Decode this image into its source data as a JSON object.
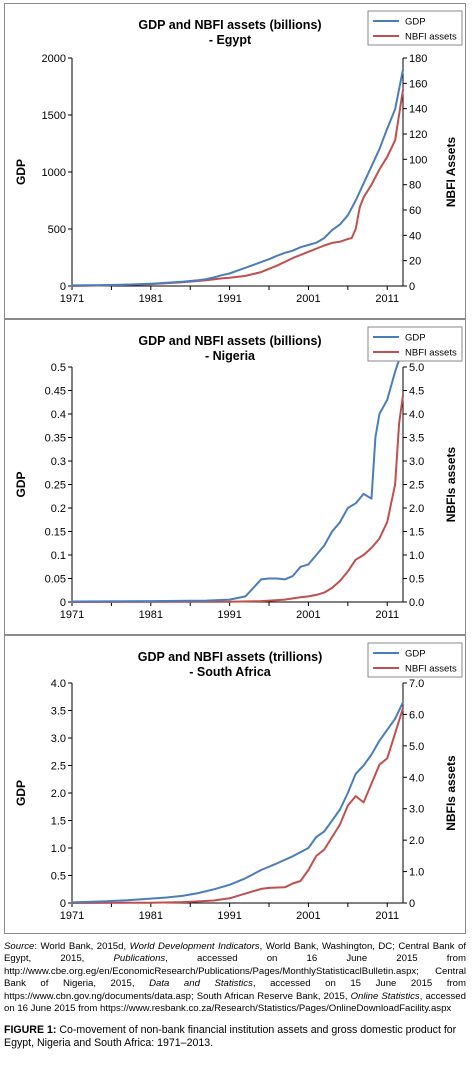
{
  "chart_data": [
    {
      "type": "line",
      "title": "GDP and NBFI assets (billions)",
      "subtitle": "- Egypt",
      "ylabel": "GDP",
      "y2label": "NBFI Assets",
      "xlim": [
        1971,
        2013
      ],
      "ylim": [
        0,
        2000
      ],
      "y2lim": [
        0,
        180
      ],
      "x_ticks": [
        1971,
        1981,
        1991,
        2001,
        2011
      ],
      "y_ticks": [
        "0",
        "500",
        "1000",
        "1500",
        "2000"
      ],
      "y2_ticks": [
        "0",
        "20",
        "40",
        "60",
        "80",
        "100",
        "120",
        "140",
        "160",
        "180"
      ],
      "legend": "top-right",
      "series": [
        {
          "name": "GDP",
          "axis": "left",
          "color": "#4a7eba",
          "x": [
            1971,
            1975,
            1978,
            1981,
            1983,
            1985,
            1987,
            1988,
            1989,
            1990,
            1991,
            1992,
            1993,
            1994,
            1995,
            1996,
            1997,
            1998,
            1999,
            2000,
            2001,
            2002,
            2003,
            2004,
            2005,
            2006,
            2007,
            2008,
            2009,
            2010,
            2011,
            2012,
            2013
          ],
          "y": [
            5,
            8,
            12,
            20,
            28,
            38,
            50,
            60,
            75,
            95,
            110,
            135,
            160,
            185,
            210,
            235,
            265,
            290,
            310,
            340,
            360,
            380,
            420,
            490,
            540,
            620,
            750,
            900,
            1050,
            1200,
            1380,
            1550,
            1900
          ]
        },
        {
          "name": "NBFI assets",
          "axis": "right",
          "color": "#c0504d",
          "x": [
            1971,
            1975,
            1978,
            1981,
            1985,
            1988,
            1990,
            1991,
            1993,
            1995,
            1997,
            1999,
            2001,
            2003,
            2004,
            2005,
            2006,
            2006.5,
            2007,
            2007.5,
            2008,
            2009,
            2010,
            2011,
            2012,
            2013
          ],
          "y": [
            0,
            0.5,
            1,
            1.5,
            3,
            4.5,
            6,
            6.5,
            8,
            11,
            16,
            22,
            27,
            32,
            34,
            35,
            37,
            38,
            45,
            62,
            70,
            80,
            92,
            102,
            115,
            155
          ]
        }
      ]
    },
    {
      "type": "line",
      "title": "GDP and NBFI assets (billions)",
      "subtitle": "- Nigeria",
      "ylabel": "GDP",
      "y2label": "NBFIs assets",
      "xlim": [
        1971,
        2013
      ],
      "ylim": [
        0,
        0.5
      ],
      "y2lim": [
        0,
        5.0
      ],
      "x_ticks": [
        1971,
        1981,
        1991,
        2001,
        2011
      ],
      "y_ticks": [
        "0",
        "0.05",
        "0.1",
        "0.15",
        "0.2",
        "0.25",
        "0.3",
        "0.35",
        "0.4",
        "0.45",
        "0.5"
      ],
      "y2_ticks": [
        "0.0",
        "0.5",
        "1.0",
        "1.5",
        "2.0",
        "2.5",
        "3.0",
        "3.5",
        "4.0",
        "4.5",
        "5.0"
      ],
      "legend": "top-right",
      "series": [
        {
          "name": "GDP",
          "axis": "left",
          "color": "#4a7eba",
          "x": [
            1971,
            1981,
            1988,
            1991,
            1993,
            1994,
            1995,
            1996,
            1997,
            1998,
            1999,
            2000,
            2001,
            2002,
            2003,
            2004,
            2005,
            2006,
            2007,
            2008,
            2008.5,
            2009,
            2009.5,
            2010,
            2011,
            2012,
            2013
          ],
          "y": [
            0.001,
            0.002,
            0.003,
            0.005,
            0.012,
            0.03,
            0.048,
            0.05,
            0.05,
            0.048,
            0.055,
            0.075,
            0.08,
            0.1,
            0.12,
            0.15,
            0.17,
            0.2,
            0.21,
            0.23,
            0.225,
            0.22,
            0.35,
            0.4,
            0.43,
            0.49,
            0.54
          ]
        },
        {
          "name": "NBFI assets",
          "axis": "right",
          "color": "#c0504d",
          "x": [
            1971,
            1991,
            1995,
            1998,
            2000,
            2001,
            2002,
            2003,
            2004,
            2005,
            2006,
            2007,
            2008,
            2009,
            2010,
            2011,
            2012,
            2012.5,
            2013
          ],
          "y": [
            0,
            0.005,
            0.02,
            0.05,
            0.1,
            0.12,
            0.15,
            0.2,
            0.3,
            0.45,
            0.65,
            0.9,
            1.0,
            1.15,
            1.35,
            1.7,
            2.5,
            3.8,
            4.4
          ]
        }
      ]
    },
    {
      "type": "line",
      "title": "GDP and NBFI assets (trillions)",
      "subtitle": "- South Africa",
      "ylabel": "GDP",
      "y2label": "NBFIs assets",
      "xlim": [
        1971,
        2013
      ],
      "ylim": [
        0,
        4.0
      ],
      "y2lim": [
        0,
        7.0
      ],
      "x_ticks": [
        1971,
        1981,
        1991,
        2001,
        2011
      ],
      "y_ticks": [
        "0",
        "0.5",
        "1.0",
        "1.5",
        "2.0",
        "2.5",
        "3.0",
        "3.5",
        "4.0"
      ],
      "y2_ticks": [
        "0",
        "1.0",
        "2.0",
        "3.0",
        "4.0",
        "5.0",
        "6.0",
        "7.0"
      ],
      "legend": "top-right",
      "series": [
        {
          "name": "GDP",
          "axis": "left",
          "color": "#4a7eba",
          "x": [
            1971,
            1975,
            1978,
            1981,
            1983,
            1985,
            1987,
            1989,
            1991,
            1993,
            1995,
            1997,
            1999,
            2001,
            2002,
            2003,
            2004,
            2005,
            2006,
            2007,
            2008,
            2009,
            2010,
            2011,
            2012,
            2013
          ],
          "y": [
            0.01,
            0.03,
            0.05,
            0.08,
            0.1,
            0.13,
            0.18,
            0.25,
            0.33,
            0.45,
            0.6,
            0.72,
            0.85,
            1.0,
            1.2,
            1.3,
            1.5,
            1.7,
            2.0,
            2.35,
            2.5,
            2.7,
            2.95,
            3.15,
            3.35,
            3.65
          ]
        },
        {
          "name": "NBFI assets",
          "axis": "right",
          "color": "#c0504d",
          "x": [
            1971,
            1981,
            1985,
            1987,
            1989,
            1991,
            1993,
            1995,
            1996,
            1998,
            1999,
            2000,
            2001,
            2002,
            2003,
            2004,
            2005,
            2006,
            2007,
            2008,
            2009,
            2010,
            2011,
            2012,
            2013
          ],
          "y": [
            0,
            0.01,
            0.03,
            0.05,
            0.08,
            0.15,
            0.3,
            0.45,
            0.48,
            0.5,
            0.62,
            0.7,
            1.05,
            1.5,
            1.7,
            2.1,
            2.5,
            3.1,
            3.4,
            3.2,
            3.8,
            4.4,
            4.6,
            5.4,
            6.2
          ]
        }
      ]
    }
  ],
  "source": {
    "label": "Source",
    "text1": ": World Bank, 2015d, ",
    "pub1": "World Development Indicators",
    "text2": ", World Bank, Washington, DC; Central Bank of Egypt, 2015, ",
    "pub2": "Publications",
    "text3": ", accessed on 16 June 2015 from http://www.cbe.org.eg/en/EconomicResearch/Publications/Pages/MonthlyStatisticaclBulletin.aspx; Central Bank of Nigeria, 2015, ",
    "pub3": "Data and Statistics",
    "text4": ", accessed on 15 June 2015 from https://www.cbn.gov.ng/documents/data.asp; South African Reserve Bank, 2015, ",
    "pub4": "Online Statistics",
    "text5": ", accessed on 16 June 2015 from https://www.resbank.co.za/Research/Statistics/Pages/OnlineDownloadFacility.aspx"
  },
  "caption": {
    "label": "FIGURE 1:",
    "text": " Co-movement of non-bank financial institution assets and gross domestic product for Egypt, Nigeria and South Africa: 1971–2013."
  }
}
